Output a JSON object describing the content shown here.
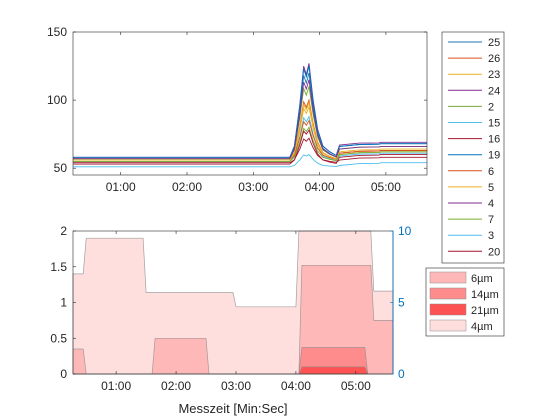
{
  "chart_data": [
    {
      "type": "line",
      "title": "",
      "xlabel": "",
      "ylabel": "",
      "xlim": [
        0.28,
        5.62
      ],
      "ylim": [
        45,
        150
      ],
      "x_ticks": [
        1,
        2,
        3,
        4,
        5
      ],
      "x_tick_labels": [
        "01:00",
        "02:00",
        "03:00",
        "04:00",
        "05:00"
      ],
      "y_ticks": [
        50,
        100,
        150
      ],
      "y_tick_labels": [
        "50",
        "100",
        "150"
      ],
      "legend_position": "outside-right",
      "series": [
        {
          "name": "25",
          "color": "#1f77b4",
          "baseline": 57,
          "peak": 120,
          "after": 68
        },
        {
          "name": "26",
          "color": "#d95319",
          "baseline": 56,
          "peak": 100,
          "after": 63
        },
        {
          "name": "23",
          "color": "#edb120",
          "baseline": 55,
          "peak": 95,
          "after": 62
        },
        {
          "name": "24",
          "color": "#7e2f8e",
          "baseline": 58,
          "peak": 127,
          "after": 69
        },
        {
          "name": "2",
          "color": "#77ac30",
          "baseline": 57,
          "peak": 110,
          "after": 66
        },
        {
          "name": "15",
          "color": "#4dbeee",
          "baseline": 55,
          "peak": 88,
          "after": 61
        },
        {
          "name": "16",
          "color": "#a2142f",
          "baseline": 54,
          "peak": 72,
          "after": 58
        },
        {
          "name": "19",
          "color": "#0072bd",
          "baseline": 58,
          "peak": 125,
          "after": 68
        },
        {
          "name": "6",
          "color": "#d95319",
          "baseline": 56,
          "peak": 85,
          "after": 63
        },
        {
          "name": "5",
          "color": "#edb120",
          "baseline": 56,
          "peak": 98,
          "after": 64
        },
        {
          "name": "4",
          "color": "#7e2f8e",
          "baseline": 57,
          "peak": 115,
          "after": 66
        },
        {
          "name": "7",
          "color": "#77ac30",
          "baseline": 55,
          "peak": 80,
          "after": 62
        },
        {
          "name": "3",
          "color": "#4dbeee",
          "baseline": 51,
          "peak": 60,
          "after": 54
        },
        {
          "name": "20",
          "color": "#a2142f",
          "baseline": 53,
          "peak": 78,
          "after": 60
        }
      ]
    },
    {
      "type": "area",
      "title": "",
      "xlabel": "Messzeit [Min:Sec]",
      "ylabel": "",
      "xlim": [
        0.28,
        5.62
      ],
      "ylim": [
        0,
        2
      ],
      "y2lim": [
        0,
        10
      ],
      "x_ticks": [
        1,
        2,
        3,
        4,
        5
      ],
      "x_tick_labels": [
        "01:00",
        "02:00",
        "03:00",
        "04:00",
        "05:00"
      ],
      "y_ticks": [
        0,
        0.5,
        1,
        1.5,
        2
      ],
      "y_tick_labels": [
        "0",
        "0.5",
        "1",
        "1.5",
        "2"
      ],
      "y2_ticks": [
        0,
        5,
        10
      ],
      "y2_tick_labels": [
        "0",
        "5",
        "10"
      ],
      "y2_color": "#0072bd",
      "legend_position": "outside-right",
      "legend": [
        {
          "name": "6µm",
          "color": "#ffb8b8"
        },
        {
          "name": "14µm",
          "color": "#ff8c8c"
        },
        {
          "name": "21µm",
          "color": "#ff5252"
        },
        {
          "name": "4µm",
          "color": "#ffdede"
        }
      ],
      "series": [
        {
          "name": "4µm",
          "color": "#ffdede",
          "axis": "right",
          "x": [
            0.28,
            0.45,
            0.5,
            1.45,
            1.5,
            2.0,
            2.05,
            2.95,
            3.0,
            3.85,
            3.9,
            4.0,
            4.05,
            5.25,
            5.3,
            5.62
          ],
          "y": [
            7.0,
            7.0,
            9.5,
            9.5,
            5.7,
            5.7,
            5.7,
            5.7,
            4.7,
            4.7,
            4.7,
            4.7,
            10.0,
            10.0,
            5.8,
            5.8
          ]
        },
        {
          "name": "6µm",
          "color": "#ffb8b8",
          "axis": "left",
          "x": [
            0.28,
            0.45,
            0.5,
            1.6,
            1.65,
            2.5,
            2.55,
            4.05,
            4.1,
            5.25,
            5.3,
            5.62
          ],
          "y": [
            0.35,
            0.35,
            0,
            0,
            0.5,
            0.5,
            0,
            0,
            1.52,
            1.52,
            0.75,
            0.75
          ]
        },
        {
          "name": "14µm",
          "color": "#ff8c8c",
          "axis": "left",
          "x": [
            0.28,
            4.05,
            4.1,
            5.15,
            5.2,
            5.62
          ],
          "y": [
            0,
            0,
            0.37,
            0.37,
            0,
            0
          ]
        },
        {
          "name": "21µm",
          "color": "#ff5252",
          "axis": "left",
          "x": [
            0.28,
            4.05,
            4.1,
            5.15,
            5.2,
            5.62
          ],
          "y": [
            0,
            0,
            0.1,
            0.1,
            0,
            0
          ]
        }
      ]
    }
  ]
}
